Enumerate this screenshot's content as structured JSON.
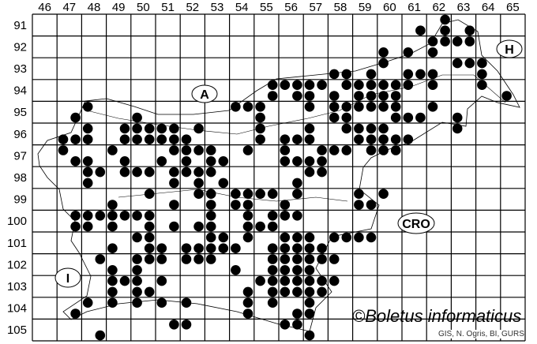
{
  "map": {
    "columns": [
      "46",
      "47",
      "48",
      "49",
      "50",
      "51",
      "52",
      "53",
      "54",
      "55",
      "56",
      "57",
      "58",
      "59",
      "60",
      "61",
      "62",
      "63",
      "64",
      "65"
    ],
    "rows": [
      "91",
      "92",
      "93",
      "94",
      "95",
      "96",
      "97",
      "98",
      "99",
      "100",
      "101",
      "102",
      "103",
      "104",
      "105"
    ],
    "region_labels": {
      "austria": "A",
      "hungary": "H",
      "croatia": "CRO",
      "italy": "I"
    },
    "watermark": "©Boletus informaticus",
    "credits": "GIS, N. Ogris, BI, GURS",
    "dot_color": "#000000",
    "records": [
      "9162/2",
      "9161/4",
      "9162/4",
      "9163/4",
      "9262/1",
      "9262/2",
      "9263/1",
      "9263/2",
      "9260/3",
      "9261/3",
      "9262/3",
      "9360/1",
      "9363/1",
      "9363/2",
      "9364/1",
      "9358/3",
      "9358/4",
      "9359/4",
      "9361/3",
      "9361/4",
      "9362/3",
      "9364/3",
      "9455/2",
      "9456/1",
      "9456/2",
      "9457/1",
      "9457/2",
      "9458/2",
      "9459/1",
      "9459/2",
      "9460/1",
      "9460/2",
      "9461/1",
      "9462/1",
      "9464/1",
      "9455/4",
      "9456/4",
      "9457/3",
      "9458/3",
      "9459/3",
      "9459/4",
      "9460/3",
      "9460/4",
      "9465/3",
      "9548/1",
      "9554/1",
      "9554/2",
      "9555/1",
      "9557/1",
      "9558/1",
      "9558/2",
      "9559/1",
      "9559/2",
      "9560/1",
      "9560/2",
      "9562/1",
      "9547/4",
      "9550/3",
      "9555/3",
      "9558/3",
      "9558/4",
      "9560/4",
      "9561/3",
      "9561/4",
      "9563/3",
      "9648/1",
      "9649/2",
      "9650/1",
      "9650/2",
      "9651/1",
      "9651/2",
      "9652/2",
      "9655/1",
      "9657/1",
      "9658/2",
      "9659/1",
      "9659/2",
      "9660/1",
      "9663/1",
      "9647/3",
      "9647/4",
      "9648/3",
      "9649/4",
      "9650/3",
      "9650/4",
      "9651/3",
      "9651/4",
      "9652/3",
      "9655/3",
      "9656/3",
      "9656/4",
      "9657/3",
      "9659/3",
      "9659/4",
      "9660/3",
      "9660/4",
      "9661/3",
      "9747/1",
      "9749/1",
      "9751/2",
      "9752/1",
      "9752/2",
      "9753/1",
      "9754/2",
      "9756/1",
      "9757/2",
      "9758/1",
      "9758/2",
      "9759/2",
      "9760/1",
      "9760/2",
      "9747/4",
      "9748/3",
      "9749/4",
      "9751/3",
      "9752/3",
      "9753/3",
      "9753/4",
      "9756/3",
      "9756/4",
      "9757/3",
      "9757/4",
      "9848/1",
      "9848/2",
      "9849/2",
      "9850/1",
      "9850/2",
      "9851/2",
      "9852/1",
      "9852/2",
      "9853/1",
      "9857/1",
      "9857/2",
      "9848/3",
      "9851/4",
      "9852/4",
      "9853/4",
      "9856/4",
      "9950/2",
      "9952/2",
      "9953/1",
      "9954/1",
      "9954/2",
      "9955/1",
      "9955/2",
      "9956/2",
      "9959/1",
      "9960/1",
      "9949/3",
      "9951/4",
      "9953/3",
      "9954/3",
      "9954/4",
      "9956/3",
      "9959/3",
      "9959/4",
      "10047/2",
      "10048/1",
      "10048/2",
      "10049/1",
      "10049/2",
      "10050/1",
      "10050/2",
      "10053/1",
      "10054/2",
      "10055/2",
      "10056/1",
      "10056/2",
      "10047/4",
      "10048/3",
      "10049/3",
      "10050/4",
      "10051/4",
      "10052/4",
      "10053/3",
      "10054/4",
      "10055/3",
      "10055/4",
      "10150/1",
      "10150/2",
      "10153/1",
      "10153/2",
      "10154/2",
      "10156/1",
      "10156/2",
      "10157/1",
      "10158/1",
      "10158/2",
      "10159/1",
      "10159/2",
      "10149/3",
      "10150/4",
      "10151/3",
      "10152/3",
      "10152/4",
      "10153/3",
      "10153/4",
      "10154/3",
      "10155/4",
      "10156/3",
      "10156/4",
      "10157/3",
      "10157/4",
      "10248/2",
      "10250/1",
      "10250/2",
      "10251/1",
      "10252/1",
      "10252/2",
      "10253/1",
      "10255/2",
      "10256/1",
      "10256/2",
      "10257/1",
      "10257/2",
      "10258/1",
      "10249/3",
      "10250/3",
      "10254/3",
      "10255/4",
      "10256/3",
      "10256/4",
      "10257/3",
      "10349/1",
      "10349/2",
      "10350/1",
      "10351/1",
      "10355/1",
      "10355/2",
      "10356/1",
      "10356/2",
      "10357/1",
      "10357/2",
      "10358/1",
      "10349/3",
      "10350/3",
      "10350/4",
      "10354/4",
      "10355/4",
      "10356/3",
      "10356/4",
      "10357/3",
      "10357/4",
      "10448/1",
      "10449/1",
      "10450/1",
      "10451/1",
      "10452/1",
      "10454/2",
      "10455/2",
      "10457/1",
      "10447/4",
      "10454/4",
      "10456/4",
      "10457/3",
      "10551/2",
      "10552/1",
      "10556/1",
      "10556/2",
      "10548/4",
      "10557/3"
    ]
  }
}
